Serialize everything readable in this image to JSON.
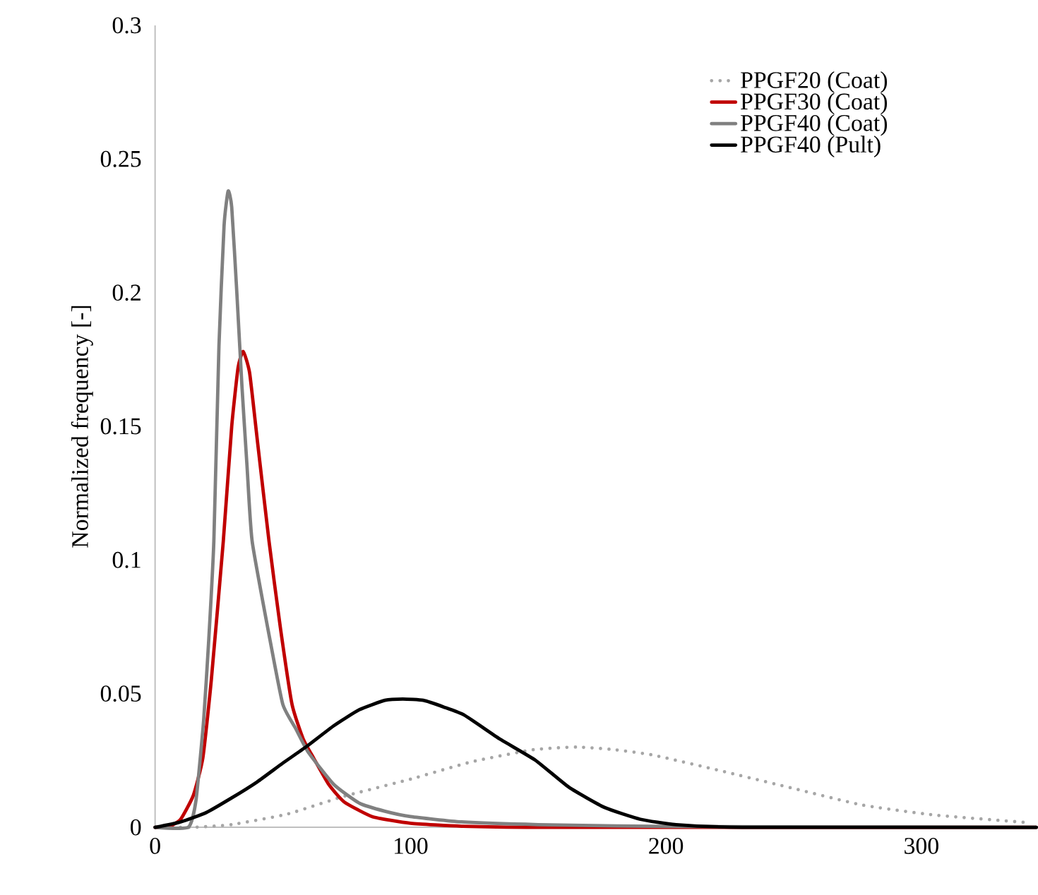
{
  "chart_data": {
    "type": "line",
    "ylabel": "Normalized frequency [-]",
    "xlim": [
      0,
      345
    ],
    "xticks": [
      0,
      100,
      200,
      300
    ],
    "ylim": [
      0,
      0.3
    ],
    "yticks": [
      0,
      0.05,
      0.1,
      0.15,
      0.2,
      0.25,
      0.3
    ],
    "grid": false,
    "legend": "top right",
    "marker": "none",
    "series": [
      {
        "name": "PPGF20 (Coat)",
        "color": "#a6a6a6",
        "line_style": "dotted",
        "x": [
          0,
          15,
          30,
          52,
          74,
          100,
          124,
          148,
          165,
          180,
          195,
          222,
          250,
          277,
          305,
          341
        ],
        "values": [
          0,
          0,
          0.001,
          0.005,
          0.0116,
          0.018,
          0.0245,
          0.029,
          0.03,
          0.029,
          0.027,
          0.021,
          0.0145,
          0.0083,
          0.0046,
          0.0018
        ]
      },
      {
        "name": "PPGF30 (Coat)",
        "color": "#c00000",
        "line_style": "solid",
        "x": [
          0,
          5,
          10,
          15,
          18.7,
          22,
          26.7,
          30,
          32.5,
          34.5,
          37,
          40,
          44.6,
          49,
          53.6,
          58,
          62,
          68,
          74,
          85,
          100,
          120,
          150,
          345
        ],
        "values": [
          0,
          0,
          0.003,
          0.012,
          0.026,
          0.055,
          0.107,
          0.15,
          0.172,
          0.178,
          0.17,
          0.145,
          0.107,
          0.075,
          0.046,
          0.033,
          0.026,
          0.016,
          0.0095,
          0.004,
          0.0015,
          0.0004,
          0,
          0
        ]
      },
      {
        "name": "PPGF40 (Coat)",
        "color": "#808080",
        "line_style": "solid",
        "x": [
          0,
          13,
          16,
          19,
          21,
          23,
          25,
          27,
          28.6,
          30,
          32,
          34,
          36,
          38,
          45,
          50,
          55,
          60,
          70,
          80,
          90,
          100,
          120,
          150,
          200,
          345
        ],
        "values": [
          0,
          0,
          0.01,
          0.04,
          0.07,
          0.107,
          0.18,
          0.225,
          0.238,
          0.232,
          0.2,
          0.165,
          0.135,
          0.107,
          0.07,
          0.046,
          0.037,
          0.028,
          0.016,
          0.009,
          0.006,
          0.004,
          0.002,
          0.001,
          0.0003,
          0
        ]
      },
      {
        "name": "PPGF40 (Pult)",
        "color": "#000000",
        "line_style": "solid",
        "x": [
          0,
          10,
          20,
          30,
          40,
          50,
          59,
          70,
          80,
          90,
          97,
          105,
          113,
          121,
          135,
          149,
          162,
          176,
          190,
          204,
          230,
          345
        ],
        "values": [
          0,
          0.002,
          0.0055,
          0.011,
          0.017,
          0.024,
          0.03,
          0.038,
          0.044,
          0.0475,
          0.048,
          0.0475,
          0.045,
          0.042,
          0.033,
          0.025,
          0.015,
          0.0074,
          0.003,
          0.001,
          0,
          0
        ]
      }
    ]
  }
}
